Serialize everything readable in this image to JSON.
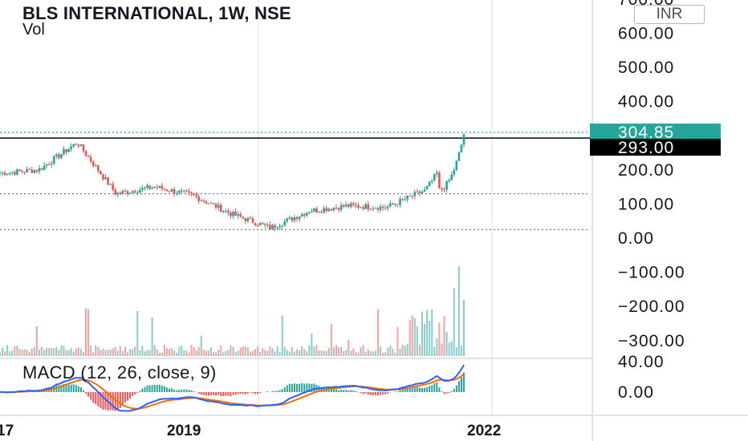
{
  "header": {
    "symbol_title": "BLS INTERNATIONAL, 1W, NSE",
    "volume_label": "Vol",
    "currency": "INR"
  },
  "macd": {
    "label": "MACD (12, 26, close, 9)",
    "axis_ticks": [
      "40.00",
      "0.00"
    ],
    "macd_line_color": "#2962ff",
    "signal_line_color": "#ff6d00",
    "hist_up_color": "#26a69a",
    "hist_down_color": "#ef5350"
  },
  "price_axis": {
    "ticks": [
      "700.00",
      "600.00",
      "500.00",
      "400.00",
      "200.00",
      "100.00",
      "0.00",
      "−100.00",
      "−200.00",
      "−300.00"
    ],
    "tick_values": [
      700,
      600,
      500,
      400,
      200,
      100,
      0,
      -100,
      -200,
      -300
    ],
    "last_price_tag": "304.85",
    "last_price_color": "#26a69a",
    "line_price_tag": "293.00",
    "line_price_color": "#000000"
  },
  "time_axis": {
    "labels": [
      "17",
      "2019",
      "2022"
    ]
  },
  "chart_data": {
    "type": "candlestick",
    "title": "BLS INTERNATIONAL, 1W, NSE",
    "currency": "INR",
    "up_color": "#26a69a",
    "down_color": "#ef5350",
    "horizontal_line_value": 293.0,
    "last_price": 304.85,
    "dotted_levels": [
      304.85,
      130,
      25
    ],
    "approx_close_path": [
      {
        "period": "2017 end",
        "close": 190
      },
      {
        "period": "2018 early",
        "close": 200
      },
      {
        "period": "2018 mid",
        "close": 280
      },
      {
        "period": "2018 late",
        "close": 130
      },
      {
        "period": "2019 start",
        "close": 150
      },
      {
        "period": "2019 mid",
        "close": 125
      },
      {
        "period": "2020 early",
        "close": 70
      },
      {
        "period": "2020 mid",
        "close": 30
      },
      {
        "period": "2020 late",
        "close": 80
      },
      {
        "period": "2021 early",
        "close": 95
      },
      {
        "period": "2021 mid",
        "close": 90
      },
      {
        "period": "2021 late",
        "close": 140
      },
      {
        "period": "2021 end",
        "close": 304.85
      }
    ],
    "y_axis_range": [
      -300,
      700
    ],
    "x_labels": [
      "17",
      "2019",
      "2022"
    ]
  }
}
